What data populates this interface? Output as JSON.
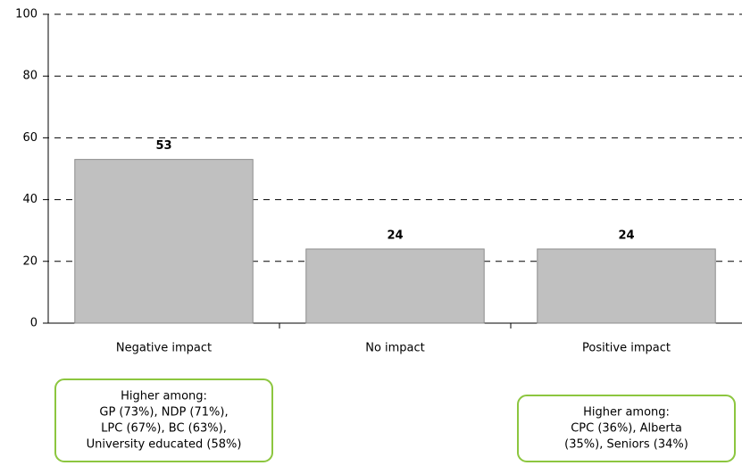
{
  "chart_data": {
    "type": "bar",
    "categories": [
      "Negative impact",
      "No impact",
      "Positive impact"
    ],
    "values": [
      53,
      24,
      24
    ],
    "color": "#c0c0c0",
    "ylim": [
      0,
      100
    ],
    "yticks": [
      0,
      20,
      40,
      60,
      80,
      100
    ],
    "grid": true,
    "annotations": [
      {
        "lines": [
          "Higher among:",
          "GP (73%), NDP (71%),",
          "LPC (67%), BC (63%),",
          "University educated (58%)"
        ]
      },
      {
        "lines": [
          "Higher among:",
          "CPC (36%), Alberta",
          "(35%), Seniors (34%)"
        ]
      }
    ]
  }
}
